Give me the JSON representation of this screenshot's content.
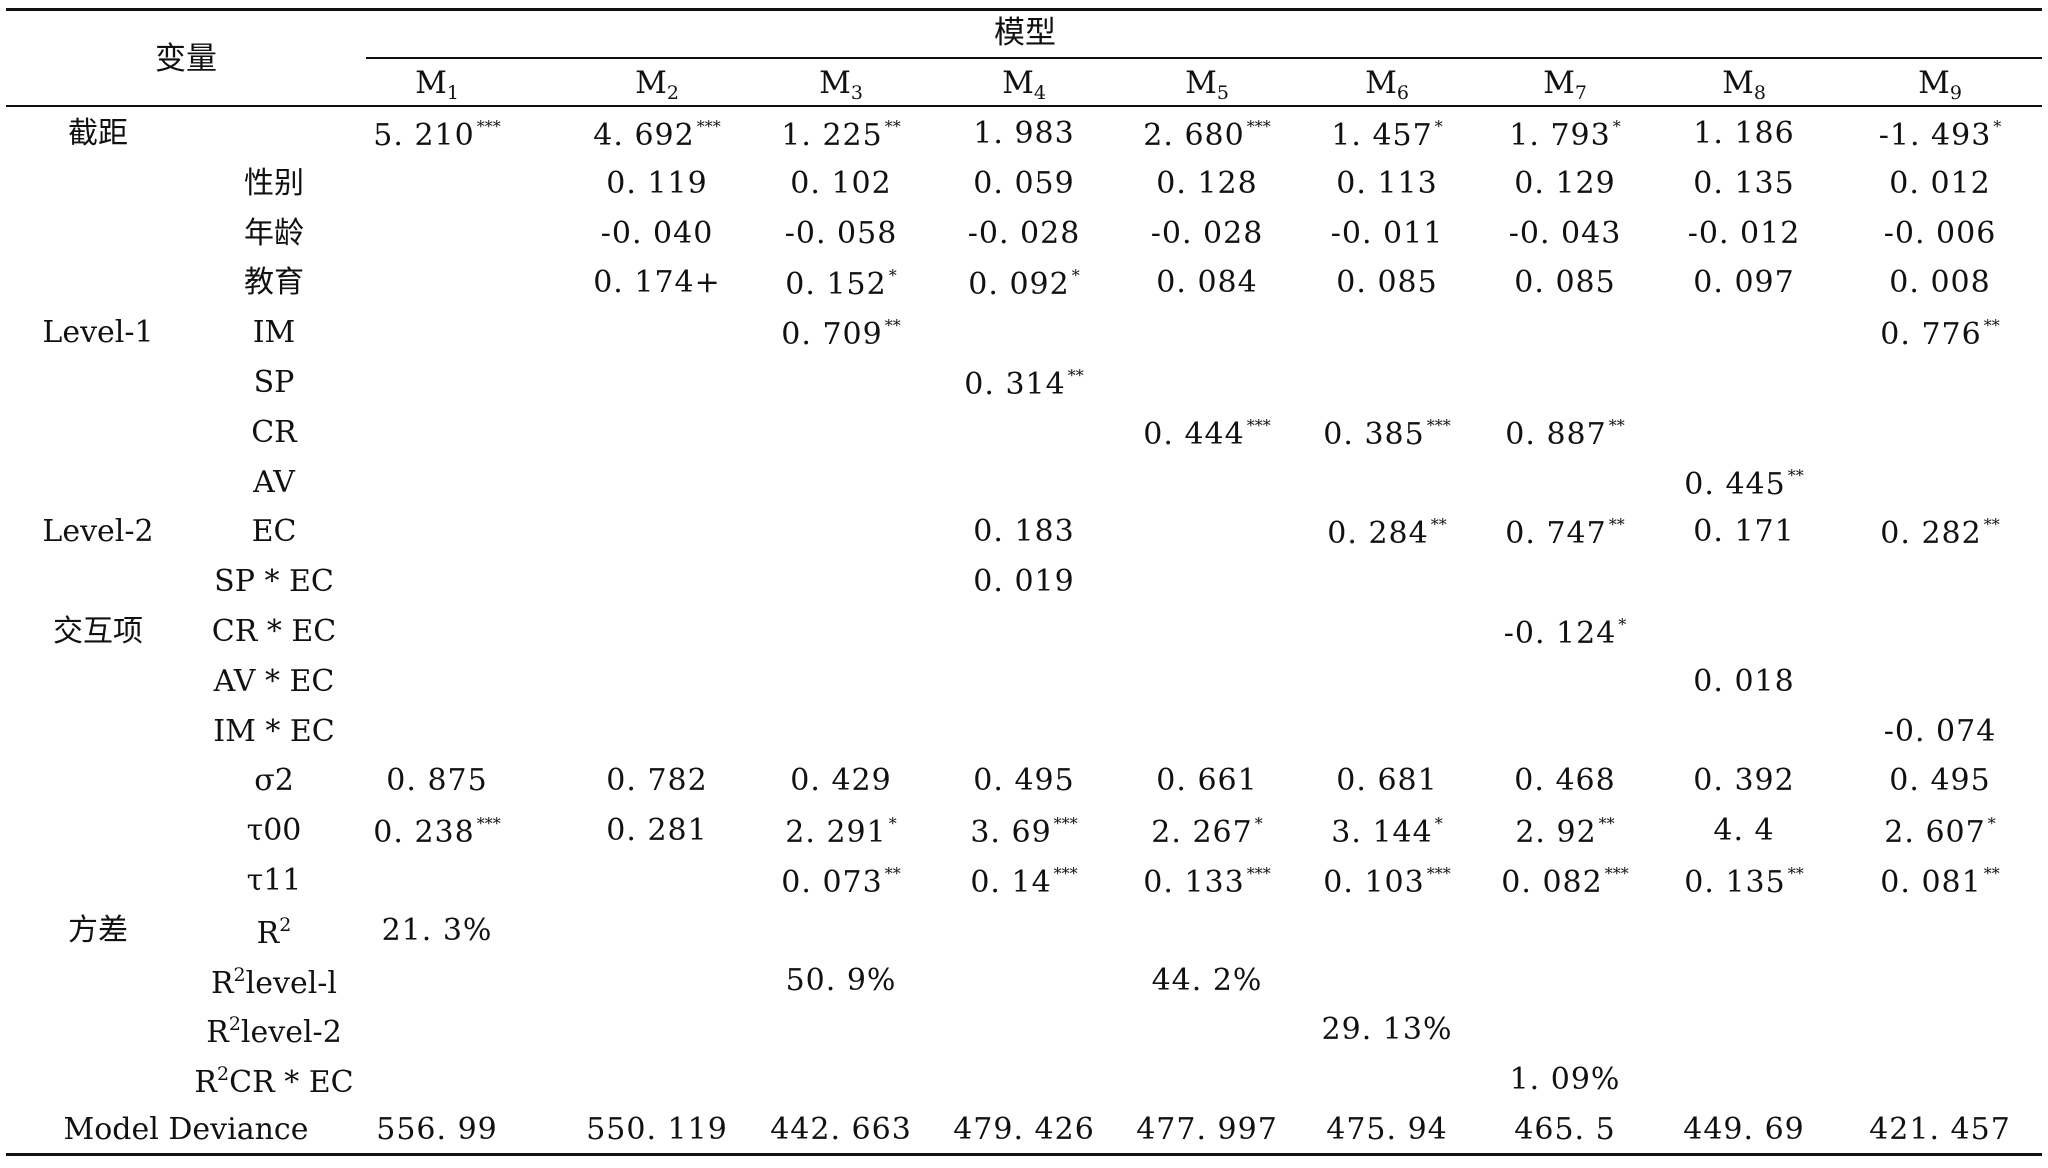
{
  "header": {
    "variable_label": "变量",
    "model_label": "模型",
    "models": [
      {
        "base": "M",
        "sub": "1"
      },
      {
        "base": "M",
        "sub": "2"
      },
      {
        "base": "M",
        "sub": "3"
      },
      {
        "base": "M",
        "sub": "4"
      },
      {
        "base": "M",
        "sub": "5"
      },
      {
        "base": "M",
        "sub": "6"
      },
      {
        "base": "M",
        "sub": "7"
      },
      {
        "base": "M",
        "sub": "8"
      },
      {
        "base": "M",
        "sub": "9"
      }
    ]
  },
  "rows": [
    {
      "group": "截距",
      "var": "",
      "cells": [
        {
          "v": "5. 210",
          "s": "***"
        },
        {
          "v": "4. 692",
          "s": "***"
        },
        {
          "v": "1. 225",
          "s": "**"
        },
        {
          "v": "1. 983",
          "s": ""
        },
        {
          "v": "2. 680",
          "s": "***"
        },
        {
          "v": "1. 457",
          "s": "*"
        },
        {
          "v": "1. 793",
          "s": "*"
        },
        {
          "v": "1. 186",
          "s": ""
        },
        {
          "v": "-1. 493",
          "s": "*"
        }
      ]
    },
    {
      "group": "",
      "var": "性别",
      "cells": [
        null,
        {
          "v": "0. 119",
          "s": ""
        },
        {
          "v": "0. 102",
          "s": ""
        },
        {
          "v": "0. 059",
          "s": ""
        },
        {
          "v": "0. 128",
          "s": ""
        },
        {
          "v": "0. 113",
          "s": ""
        },
        {
          "v": "0. 129",
          "s": ""
        },
        {
          "v": "0. 135",
          "s": ""
        },
        {
          "v": "0. 012",
          "s": ""
        }
      ]
    },
    {
      "group": "",
      "var": "年龄",
      "cells": [
        null,
        {
          "v": "-0. 040",
          "s": ""
        },
        {
          "v": "-0. 058",
          "s": ""
        },
        {
          "v": "-0. 028",
          "s": ""
        },
        {
          "v": "-0. 028",
          "s": ""
        },
        {
          "v": "-0. 011",
          "s": ""
        },
        {
          "v": "-0. 043",
          "s": ""
        },
        {
          "v": "-0. 012",
          "s": ""
        },
        {
          "v": "-0. 006",
          "s": ""
        }
      ]
    },
    {
      "group": "",
      "var": "教育",
      "cells": [
        null,
        {
          "v": "0. 174+",
          "s": ""
        },
        {
          "v": "0. 152",
          "s": "*"
        },
        {
          "v": "0. 092",
          "s": "*"
        },
        {
          "v": "0. 084",
          "s": ""
        },
        {
          "v": "0. 085",
          "s": ""
        },
        {
          "v": "0. 085",
          "s": ""
        },
        {
          "v": "0. 097",
          "s": ""
        },
        {
          "v": "0. 008",
          "s": ""
        }
      ]
    },
    {
      "group": "Level-1",
      "var": "IM",
      "cells": [
        null,
        null,
        {
          "v": "0. 709",
          "s": "**"
        },
        null,
        null,
        null,
        null,
        null,
        {
          "v": "0. 776",
          "s": "**"
        }
      ]
    },
    {
      "group": "",
      "var": "SP",
      "cells": [
        null,
        null,
        null,
        {
          "v": "0. 314",
          "s": "**"
        },
        null,
        null,
        null,
        null,
        null
      ]
    },
    {
      "group": "",
      "var": "CR",
      "cells": [
        null,
        null,
        null,
        null,
        {
          "v": "0. 444",
          "s": "***"
        },
        {
          "v": "0. 385",
          "s": "***"
        },
        {
          "v": "0. 887",
          "s": "**"
        },
        null,
        null
      ]
    },
    {
      "group": "",
      "var": "AV",
      "cells": [
        null,
        null,
        null,
        null,
        null,
        null,
        null,
        {
          "v": "0. 445",
          "s": "**"
        },
        null
      ]
    },
    {
      "group": "Level-2",
      "var": "EC",
      "cells": [
        null,
        null,
        null,
        {
          "v": "0. 183",
          "s": ""
        },
        null,
        {
          "v": "0. 284",
          "s": "**"
        },
        {
          "v": "0. 747",
          "s": "**"
        },
        {
          "v": "0. 171",
          "s": ""
        },
        {
          "v": "0. 282",
          "s": "**"
        }
      ]
    },
    {
      "group": "",
      "var": "SP * EC",
      "cells": [
        null,
        null,
        null,
        {
          "v": "0. 019",
          "s": ""
        },
        null,
        null,
        null,
        null,
        null
      ]
    },
    {
      "group": "交互项",
      "var": "CR * EC",
      "cells": [
        null,
        null,
        null,
        null,
        null,
        null,
        {
          "v": "-0. 124",
          "s": "*"
        },
        null,
        null
      ]
    },
    {
      "group": "",
      "var": "AV * EC",
      "cells": [
        null,
        null,
        null,
        null,
        null,
        null,
        null,
        {
          "v": "0. 018",
          "s": ""
        },
        null
      ]
    },
    {
      "group": "",
      "var": "IM * EC",
      "cells": [
        null,
        null,
        null,
        null,
        null,
        null,
        null,
        null,
        {
          "v": "-0. 074",
          "s": ""
        }
      ]
    },
    {
      "group": "",
      "var": "σ2",
      "cells": [
        {
          "v": "0. 875",
          "s": ""
        },
        {
          "v": "0. 782",
          "s": ""
        },
        {
          "v": "0. 429",
          "s": ""
        },
        {
          "v": "0. 495",
          "s": ""
        },
        {
          "v": "0. 661",
          "s": ""
        },
        {
          "v": "0. 681",
          "s": ""
        },
        {
          "v": "0. 468",
          "s": ""
        },
        {
          "v": "0. 392",
          "s": ""
        },
        {
          "v": "0. 495",
          "s": ""
        }
      ]
    },
    {
      "group": "",
      "var": "τ00",
      "cells": [
        {
          "v": "0. 238",
          "s": "***"
        },
        {
          "v": "0. 281",
          "s": ""
        },
        {
          "v": "2. 291",
          "s": "*"
        },
        {
          "v": "3. 69",
          "s": "***"
        },
        {
          "v": "2. 267",
          "s": "*"
        },
        {
          "v": "3. 144",
          "s": "*"
        },
        {
          "v": "2. 92",
          "s": "**"
        },
        {
          "v": "4. 4",
          "s": ""
        },
        {
          "v": "2. 607",
          "s": "*"
        }
      ]
    },
    {
      "group": "",
      "var": "τ11",
      "cells": [
        null,
        null,
        {
          "v": "0. 073",
          "s": "**"
        },
        {
          "v": "0. 14",
          "s": "***"
        },
        {
          "v": "0. 133",
          "s": "***"
        },
        {
          "v": "0. 103",
          "s": "***"
        },
        {
          "v": "0. 082",
          "s": "***"
        },
        {
          "v": "0. 135",
          "s": "**"
        },
        {
          "v": "0. 081",
          "s": "**"
        }
      ]
    },
    {
      "group": "方差",
      "var": "R",
      "var_sup": "2",
      "var_tail": "",
      "cells": [
        {
          "v": "21. 3%",
          "s": ""
        },
        null,
        null,
        null,
        null,
        null,
        null,
        null,
        null
      ]
    },
    {
      "group": "",
      "var": "R",
      "var_sup": "2",
      "var_tail": "level-l",
      "cells": [
        null,
        null,
        {
          "v": "50. 9%",
          "s": ""
        },
        null,
        {
          "v": "44. 2%",
          "s": ""
        },
        null,
        null,
        null,
        null
      ]
    },
    {
      "group": "",
      "var": "R",
      "var_sup": "2",
      "var_tail": "level-2",
      "cells": [
        null,
        null,
        null,
        null,
        null,
        {
          "v": "29. 13%",
          "s": ""
        },
        null,
        null,
        null
      ]
    },
    {
      "group": "",
      "var": "R",
      "var_sup": "2",
      "var_tail": "CR * EC",
      "cells": [
        null,
        null,
        null,
        null,
        null,
        null,
        {
          "v": "1. 09%",
          "s": ""
        },
        null,
        null
      ]
    },
    {
      "group": "Model Deviance",
      "var": "",
      "cells": [
        {
          "v": "556. 99",
          "s": ""
        },
        {
          "v": "550. 119",
          "s": ""
        },
        {
          "v": "442. 663",
          "s": ""
        },
        {
          "v": "479. 426",
          "s": ""
        },
        {
          "v": "477. 997",
          "s": ""
        },
        {
          "v": "475. 94",
          "s": ""
        },
        {
          "v": "465. 5",
          "s": ""
        },
        {
          "v": "449. 69",
          "s": ""
        },
        {
          "v": "421. 457",
          "s": ""
        }
      ]
    }
  ]
}
